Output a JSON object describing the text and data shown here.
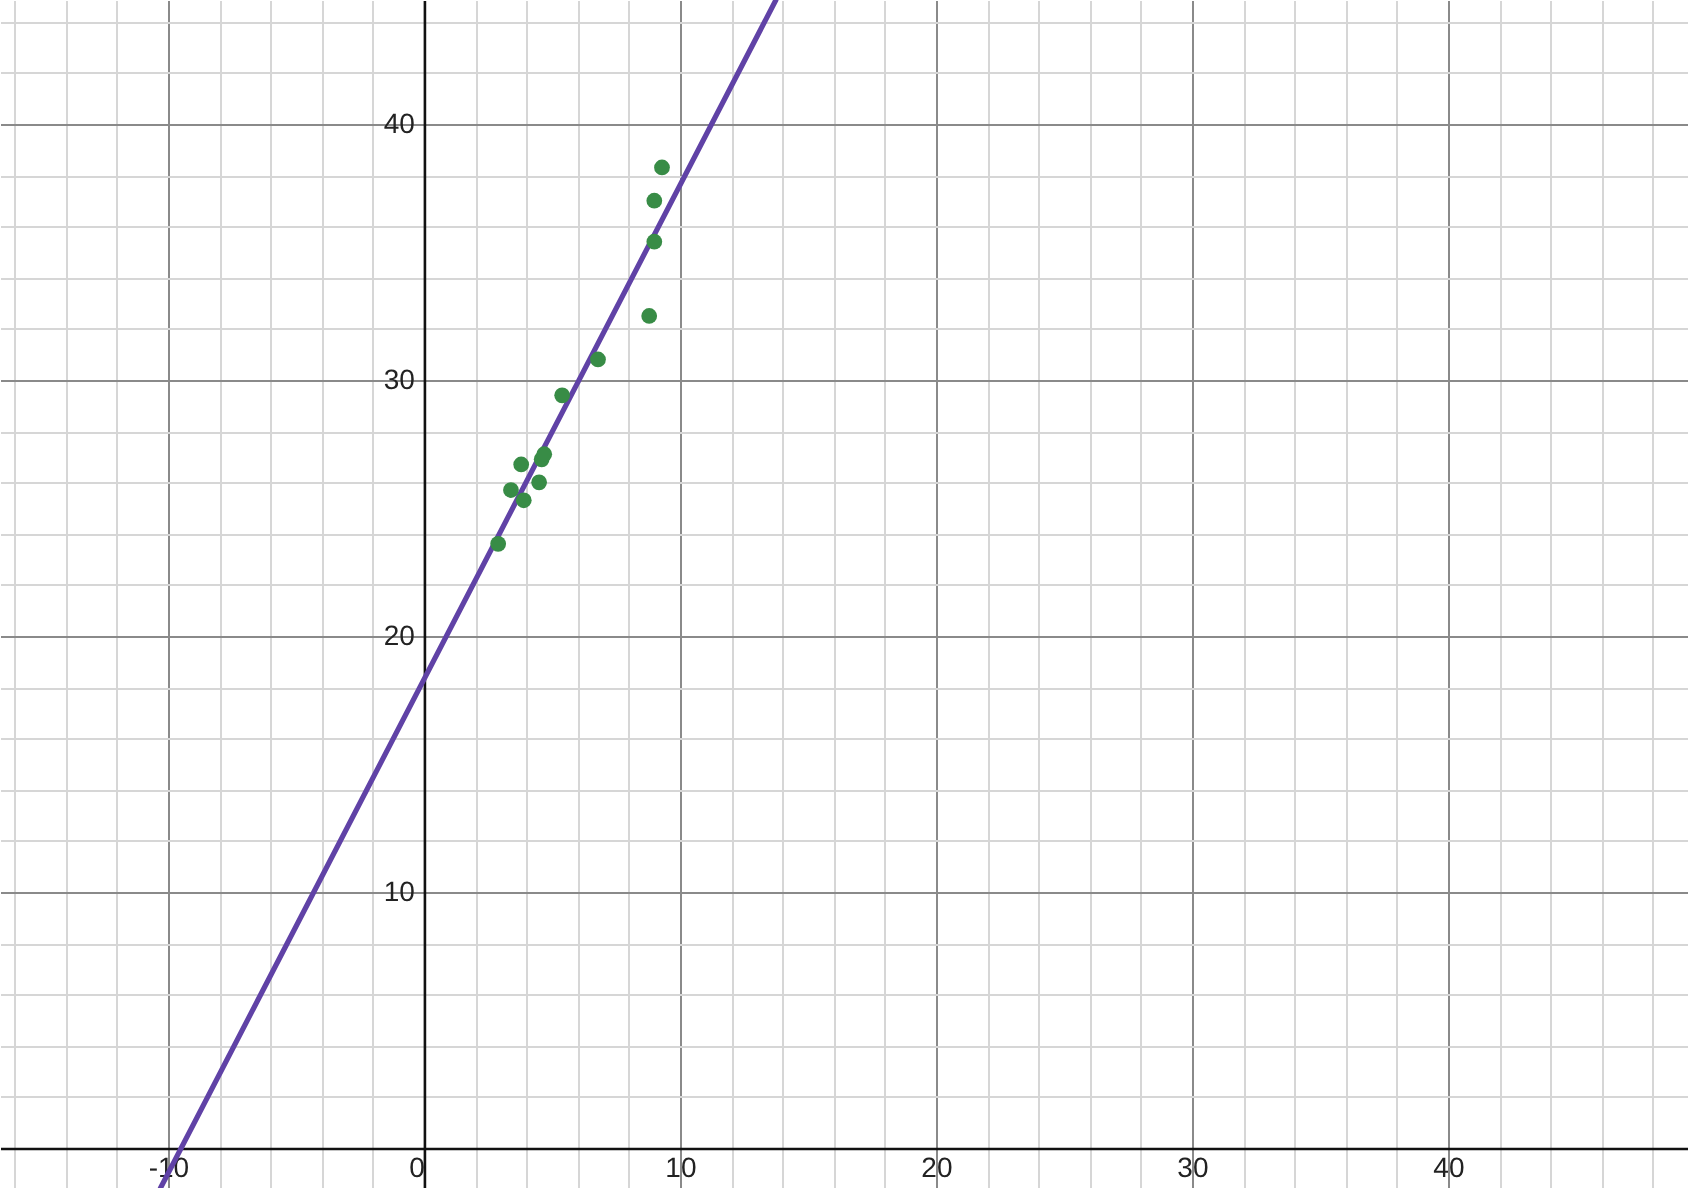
{
  "chart_data": {
    "type": "scatter",
    "xlim": [
      -16.56,
      49.38
    ],
    "ylim": [
      -1.56,
      44.84
    ],
    "xticks": [
      {
        "value": -16,
        "label": null
      },
      {
        "value": -14,
        "label": null
      },
      {
        "value": -12,
        "label": null
      },
      -10,
      {
        "value": -8,
        "label": null
      },
      {
        "value": -6,
        "label": null
      },
      {
        "value": -4,
        "label": null
      },
      {
        "value": -2,
        "label": null
      },
      0,
      {
        "value": 2,
        "label": null
      },
      {
        "value": 4,
        "label": null
      },
      {
        "value": 6,
        "label": null
      },
      {
        "value": 8,
        "label": null
      },
      10,
      {
        "value": 12,
        "label": null
      },
      {
        "value": 14,
        "label": null
      },
      {
        "value": 16,
        "label": null
      },
      {
        "value": 18,
        "label": null
      },
      20,
      {
        "value": 22,
        "label": null
      },
      {
        "value": 24,
        "label": null
      },
      {
        "value": 26,
        "label": null
      },
      {
        "value": 28,
        "label": null
      },
      30,
      {
        "value": 32,
        "label": null
      },
      {
        "value": 34,
        "label": null
      },
      {
        "value": 36,
        "label": null
      },
      {
        "value": 38,
        "label": null
      },
      40,
      {
        "value": 42,
        "label": null
      },
      {
        "value": 44,
        "label": null
      },
      {
        "value": 46,
        "label": null
      },
      {
        "value": 48,
        "label": null
      }
    ],
    "yticks": [
      {
        "value": 0,
        "label": null
      },
      {
        "value": 2,
        "label": null
      },
      {
        "value": 4,
        "label": null
      },
      {
        "value": 6,
        "label": null
      },
      {
        "value": 8,
        "label": null
      },
      10,
      {
        "value": 12,
        "label": null
      },
      {
        "value": 14,
        "label": null
      },
      {
        "value": 16,
        "label": null
      },
      {
        "value": 18,
        "label": null
      },
      20,
      {
        "value": 22,
        "label": null
      },
      {
        "value": 24,
        "label": null
      },
      {
        "value": 26,
        "label": null
      },
      {
        "value": 28,
        "label": null
      },
      30,
      {
        "value": 32,
        "label": null
      },
      {
        "value": 34,
        "label": null
      },
      {
        "value": 36,
        "label": null
      },
      {
        "value": 38,
        "label": null
      },
      40,
      {
        "value": 42,
        "label": null
      },
      {
        "value": 44,
        "label": null
      }
    ],
    "grid": true,
    "marker": "circle",
    "series": [
      {
        "color": "#388c46",
        "x": [
          2.9,
          3.4,
          3.8,
          3.9,
          4.5,
          4.6,
          4.7,
          5.4,
          6.8,
          8.8,
          9.0,
          9.0,
          9.3
        ],
        "values": [
          23.6,
          25.7,
          26.7,
          25.3,
          26.0,
          26.9,
          27.1,
          29.4,
          30.8,
          32.5,
          35.4,
          37.0,
          38.3
        ]
      },
      {
        "type": "line",
        "color": "#6042a6",
        "marker": "none",
        "line_style": "solid",
        "x": [
          -10.29,
          13.75
        ],
        "values": [
          -1.56,
          44.84
        ]
      }
    ]
  }
}
